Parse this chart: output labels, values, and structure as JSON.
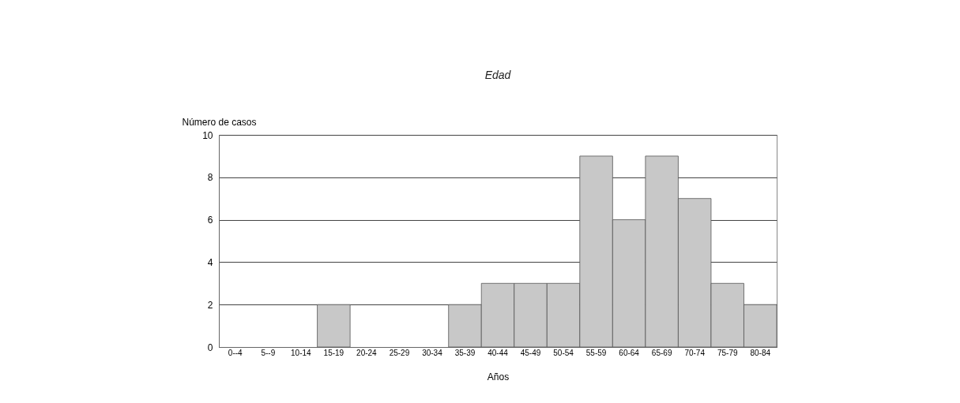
{
  "chart_data": {
    "type": "bar",
    "title": "Edad",
    "xlabel": "Años",
    "ylabel": "Número de casos",
    "categories": [
      "0--4",
      "5--9",
      "10-14",
      "15-19",
      "20-24",
      "25-29",
      "30-34",
      "35-39",
      "40-44",
      "45-49",
      "50-54",
      "55-59",
      "60-64",
      "65-69",
      "70-74",
      "75-79",
      "80-84"
    ],
    "values": [
      0,
      0,
      0,
      2,
      0,
      0,
      0,
      2,
      3,
      3,
      3,
      9,
      6,
      9,
      7,
      3,
      2
    ],
    "color": "#c8c8c8",
    "ylim": [
      0,
      10
    ],
    "yticks": [
      0,
      2,
      4,
      6,
      8,
      10
    ],
    "grid": "y"
  }
}
